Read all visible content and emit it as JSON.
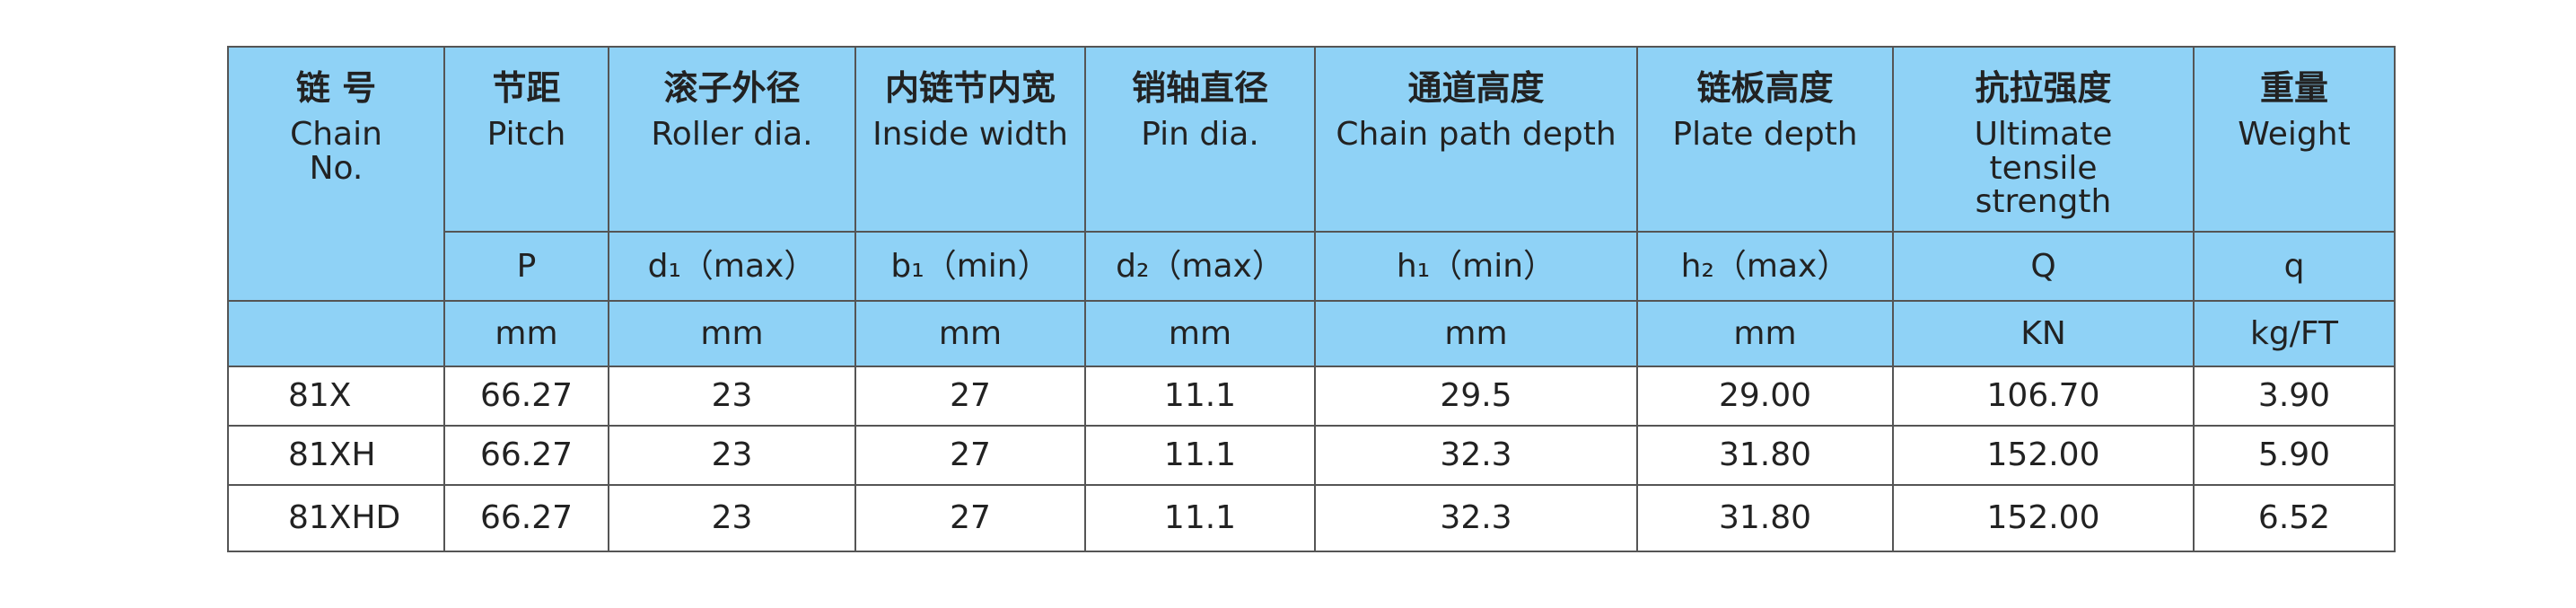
{
  "table": {
    "columns": [
      {
        "zh": "链 号",
        "en": "Chain No."
      },
      {
        "zh": "节距",
        "en": "Pitch",
        "symbol": "P",
        "unit": "mm"
      },
      {
        "zh": "滚子外径",
        "en": "Roller dia.",
        "symbol": "d₁（max）",
        "unit": "mm"
      },
      {
        "zh": "内链节内宽",
        "en": "Inside width",
        "symbol": "b₁（min）",
        "unit": "mm"
      },
      {
        "zh": "销轴直径",
        "en": "Pin dia.",
        "symbol": "d₂（max）",
        "unit": "mm"
      },
      {
        "zh": "通道高度",
        "en": "Chain path depth",
        "symbol": "h₁（min）",
        "unit": "mm"
      },
      {
        "zh": "链板高度",
        "en": "Plate depth",
        "symbol": "h₂（max）",
        "unit": "mm"
      },
      {
        "zh": "抗拉强度",
        "en": "Ultimate tensile strength",
        "symbol": "Q",
        "unit": "KN"
      },
      {
        "zh": "重量",
        "en": "Weight",
        "symbol": "q",
        "unit": "kg/FT"
      }
    ],
    "rows": [
      [
        "81X",
        "66.27",
        "23",
        "27",
        "11.1",
        "29.5",
        "29.00",
        "106.70",
        "3.90"
      ],
      [
        "81XH",
        "66.27",
        "23",
        "27",
        "11.1",
        "32.3",
        "31.80",
        "152.00",
        "5.90"
      ],
      [
        "81XHD",
        "66.27",
        "23",
        "27",
        "11.1",
        "32.3",
        "31.80",
        "152.00",
        "6.52"
      ]
    ]
  }
}
